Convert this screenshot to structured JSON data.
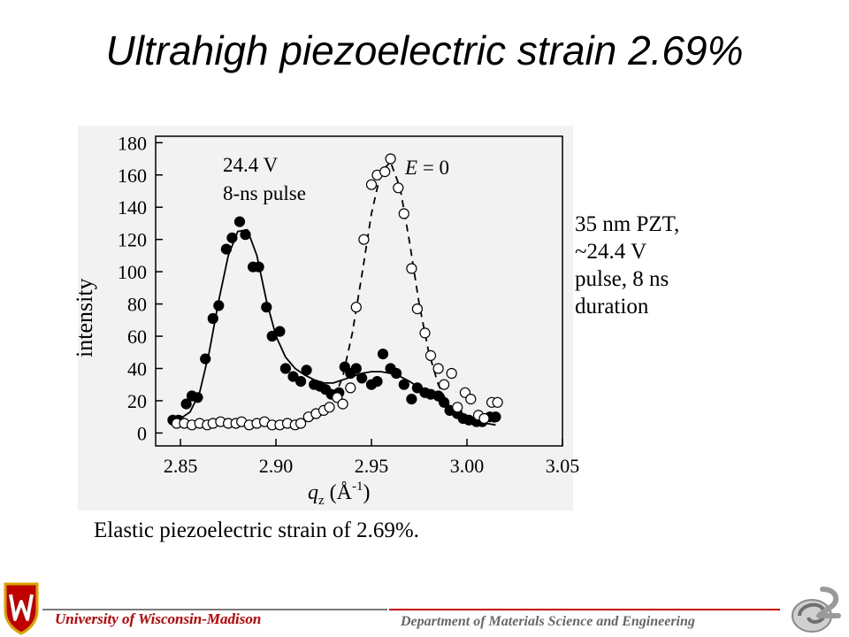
{
  "slide": {
    "title": "Ultrahigh piezoelectric strain 2.69%",
    "side_note": [
      "35 nm PZT,",
      "~24.4 V",
      "pulse, 8 ns",
      "duration"
    ],
    "caption": "Elastic piezoelectric strain of 2.69%."
  },
  "footer": {
    "university": "University of Wisconsin-Madison",
    "department": "Department of Materials Science and Engineering",
    "accent_color": "#c00000"
  },
  "chart_data": {
    "type": "scatter",
    "xlabel": "q",
    "xlabel_sub": "z",
    "xlabel_unit_open": " (Å",
    "xlabel_unit_sup": "-1",
    "xlabel_unit_close": ")",
    "ylabel": "intensity",
    "xlim": [
      2.837,
      3.05
    ],
    "ylim": [
      -8,
      184
    ],
    "xticks": [
      "2.85",
      "2.90",
      "2.95",
      "3.00",
      "3.05"
    ],
    "yticks": [
      "0",
      "20",
      "40",
      "60",
      "80",
      "100",
      "120",
      "140",
      "160",
      "180"
    ],
    "annotations": {
      "voltage": "24.4 V",
      "pulse": "8-ns pulse",
      "field_var": "E",
      "field_rest": " = 0"
    },
    "series": [
      {
        "marker": "filled-circle",
        "fit": "solid",
        "x": [
          2.846,
          2.849,
          2.853,
          2.856,
          2.859,
          2.863,
          2.867,
          2.87,
          2.874,
          2.877,
          2.881,
          2.884,
          2.888,
          2.891,
          2.895,
          2.898,
          2.902,
          2.905,
          2.909,
          2.913,
          2.916,
          2.92,
          2.923,
          2.926,
          2.929,
          2.933,
          2.936,
          2.939,
          2.942,
          2.945,
          2.95,
          2.953,
          2.956,
          2.96,
          2.963,
          2.967,
          2.971,
          2.974,
          2.978,
          2.981,
          2.985,
          2.988,
          2.991,
          2.995,
          2.998,
          3.001,
          3.005,
          3.008,
          3.012,
          3.015
        ],
        "y": [
          8,
          8,
          18,
          23,
          22,
          46,
          71,
          79,
          114,
          121,
          131,
          123,
          103,
          103,
          78,
          60,
          63,
          40,
          35,
          32,
          39,
          30,
          29,
          27,
          24,
          25,
          41,
          37,
          40,
          34,
          30,
          32,
          49,
          40,
          37,
          30,
          21,
          28,
          25,
          24,
          23,
          19,
          14,
          12,
          9,
          8,
          7,
          7,
          10,
          10
        ],
        "fit_x": [
          2.845,
          2.85,
          2.855,
          2.86,
          2.865,
          2.87,
          2.875,
          2.88,
          2.885,
          2.89,
          2.895,
          2.9,
          2.905,
          2.91,
          2.915,
          2.92,
          2.925,
          2.93,
          2.935,
          2.94,
          2.945,
          2.95,
          2.955,
          2.96,
          2.965,
          2.97,
          2.975,
          2.98,
          2.985,
          2.99,
          2.995,
          3.0,
          3.005,
          3.01,
          3.015
        ],
        "fit_y": [
          7,
          9,
          13,
          25,
          50,
          82,
          110,
          125,
          126,
          110,
          82,
          60,
          47,
          40,
          36,
          33,
          31,
          31,
          33,
          35,
          37,
          38,
          38,
          37,
          35,
          32,
          28,
          24,
          20,
          16,
          12,
          9,
          7,
          6,
          5
        ]
      },
      {
        "marker": "open-circle",
        "fit": "dashed",
        "x": [
          2.848,
          2.852,
          2.856,
          2.86,
          2.864,
          2.867,
          2.871,
          2.875,
          2.879,
          2.882,
          2.886,
          2.89,
          2.894,
          2.898,
          2.902,
          2.906,
          2.91,
          2.913,
          2.917,
          2.921,
          2.925,
          2.928,
          2.932,
          2.935,
          2.939,
          2.942,
          2.946,
          2.95,
          2.953,
          2.957,
          2.96,
          2.964,
          2.967,
          2.971,
          2.974,
          2.978,
          2.981,
          2.985,
          2.988,
          2.992,
          2.995,
          2.999,
          3.002,
          3.006,
          3.009,
          3.013,
          3.016
        ],
        "y": [
          6,
          6,
          5,
          6,
          5,
          6,
          7,
          6,
          6,
          7,
          5,
          6,
          7,
          5,
          5,
          6,
          5,
          6,
          10,
          12,
          14,
          16,
          22,
          18,
          28,
          78,
          120,
          154,
          160,
          162,
          170,
          152,
          136,
          102,
          77,
          62,
          48,
          40,
          30,
          37,
          16,
          25,
          21,
          11,
          9,
          19,
          19
        ],
        "fit_x": [
          2.845,
          2.85,
          2.86,
          2.87,
          2.88,
          2.89,
          2.9,
          2.91,
          2.915,
          2.92,
          2.925,
          2.93,
          2.935,
          2.94,
          2.945,
          2.95,
          2.955,
          2.96,
          2.965,
          2.97,
          2.975,
          2.98,
          2.985,
          2.99,
          2.995,
          3.0,
          3.005,
          3.01,
          3.015
        ],
        "fit_y": [
          6,
          6,
          6,
          6,
          6,
          6,
          6,
          7,
          8,
          9,
          12,
          20,
          35,
          62,
          98,
          136,
          162,
          168,
          152,
          118,
          80,
          50,
          30,
          18,
          12,
          9,
          8,
          7,
          7
        ]
      }
    ]
  }
}
